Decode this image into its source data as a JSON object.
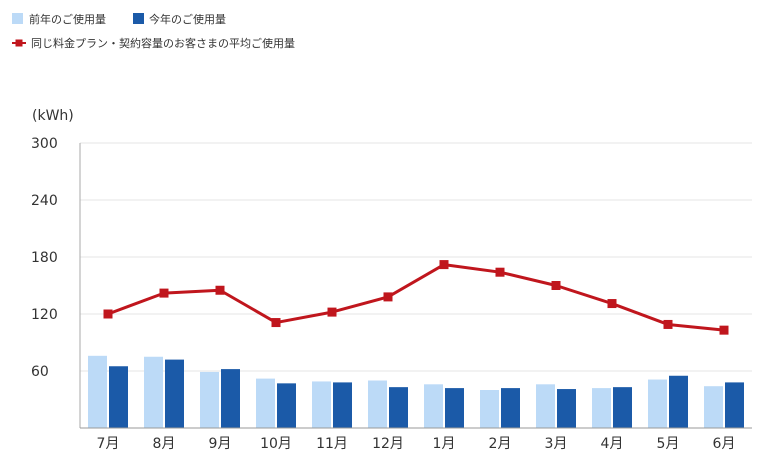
{
  "chart_data": {
    "type": "bar",
    "unit_label": "(kWh)",
    "categories": [
      "7月",
      "8月",
      "9月",
      "10月",
      "11月",
      "12月",
      "1月",
      "2月",
      "3月",
      "4月",
      "5月",
      "6月"
    ],
    "ylim": [
      0,
      300
    ],
    "yticks": [
      60,
      120,
      180,
      240,
      300
    ],
    "grid": true,
    "legend_position": "top-left",
    "series": [
      {
        "name": "前年のご使用量",
        "type": "bar",
        "color": "#bcdaf7",
        "values": [
          76,
          75,
          59,
          52,
          49,
          50,
          46,
          40,
          46,
          42,
          51,
          44
        ]
      },
      {
        "name": "今年のご使用量",
        "type": "bar",
        "color": "#1b5aa8",
        "values": [
          65,
          72,
          62,
          47,
          48,
          43,
          42,
          42,
          41,
          43,
          55,
          48
        ]
      },
      {
        "name": "同じ料金プラン・契約容量のお客さまの平均ご使用量",
        "type": "line",
        "color": "#c0161d",
        "values": [
          120,
          142,
          145,
          111,
          122,
          138,
          172,
          164,
          150,
          131,
          109,
          103
        ]
      }
    ]
  }
}
